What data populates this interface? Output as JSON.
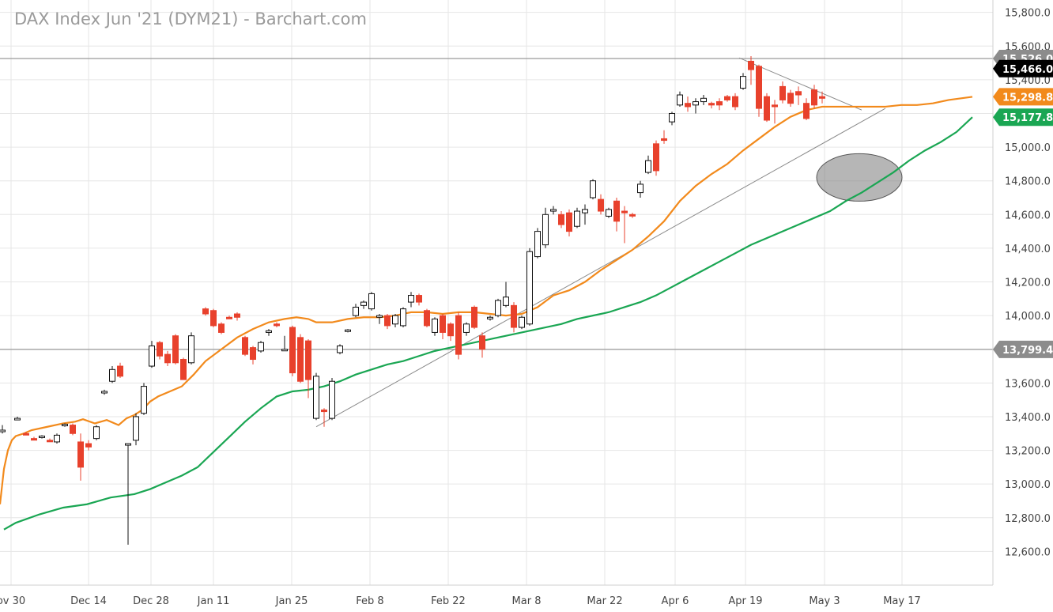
{
  "chart_data": {
    "type": "candlestick",
    "title": "DAX Index Jun '21 (DYM21) - Barchart.com",
    "ylim": [
      12400,
      15850
    ],
    "y_ticks": [
      "12,600.0",
      "12,800.0",
      "13,000.0",
      "13,200.0",
      "13,400.0",
      "13,600.0",
      "13,800.0",
      "14,000.0",
      "14,200.0",
      "14,400.0",
      "14,600.0",
      "14,800.0",
      "15,000.0",
      "15,200.0",
      "15,400.0",
      "15,600.0",
      "15,800.0"
    ],
    "x_ticks": [
      "ov 30",
      "Dec 14",
      "Dec 28",
      "Jan 11",
      "Jan 25",
      "Feb 8",
      "Feb 22",
      "Mar 8",
      "Mar 22",
      "Apr 6",
      "Apr 19",
      "May 3",
      "May 17"
    ],
    "price_tags": [
      {
        "label": "15,526.0",
        "value": 15526,
        "color": "#8c8c8c"
      },
      {
        "label": "15,466.0",
        "value": 15466,
        "color": "#000000"
      },
      {
        "label": "15,298.8",
        "value": 15298.8,
        "color": "#f28a1c"
      },
      {
        "label": "15,177.8",
        "value": 15177.8,
        "color": "#1aa653"
      },
      {
        "label": "13,799.4",
        "value": 13799.4,
        "color": "#8c8c8c"
      }
    ],
    "horizontal_lines": [
      15526,
      13799.4
    ],
    "series": [
      {
        "name": "",
        "color": "#f28a1c",
        "points": [
          [
            0,
            12880
          ],
          [
            5,
            13090
          ],
          [
            10,
            13200
          ],
          [
            15,
            13260
          ],
          [
            20,
            13285
          ],
          [
            30,
            13300
          ],
          [
            40,
            13320
          ],
          [
            60,
            13340
          ],
          [
            80,
            13360
          ],
          [
            95,
            13370
          ],
          [
            105,
            13385
          ],
          [
            120,
            13360
          ],
          [
            135,
            13380
          ],
          [
            150,
            13350
          ],
          [
            160,
            13390
          ],
          [
            170,
            13410
          ],
          [
            180,
            13440
          ],
          [
            190,
            13490
          ],
          [
            200,
            13520
          ],
          [
            215,
            13550
          ],
          [
            230,
            13580
          ],
          [
            245,
            13650
          ],
          [
            260,
            13730
          ],
          [
            280,
            13800
          ],
          [
            300,
            13870
          ],
          [
            320,
            13920
          ],
          [
            340,
            13960
          ],
          [
            360,
            13980
          ],
          [
            375,
            13990
          ],
          [
            390,
            13980
          ],
          [
            400,
            13960
          ],
          [
            420,
            13960
          ],
          [
            440,
            13980
          ],
          [
            460,
            13990
          ],
          [
            480,
            13990
          ],
          [
            500,
            14000
          ],
          [
            520,
            14020
          ],
          [
            540,
            14020
          ],
          [
            560,
            14010
          ],
          [
            580,
            14020
          ],
          [
            600,
            14020
          ],
          [
            620,
            14010
          ],
          [
            640,
            14000
          ],
          [
            660,
            14010
          ],
          [
            680,
            14050
          ],
          [
            700,
            14120
          ],
          [
            720,
            14150
          ],
          [
            740,
            14200
          ],
          [
            760,
            14270
          ],
          [
            780,
            14330
          ],
          [
            800,
            14390
          ],
          [
            820,
            14470
          ],
          [
            840,
            14560
          ],
          [
            860,
            14680
          ],
          [
            880,
            14770
          ],
          [
            900,
            14840
          ],
          [
            920,
            14900
          ],
          [
            940,
            14980
          ],
          [
            960,
            15050
          ],
          [
            980,
            15120
          ],
          [
            1000,
            15180
          ],
          [
            1020,
            15220
          ],
          [
            1040,
            15240
          ],
          [
            1060,
            15240
          ],
          [
            1080,
            15240
          ],
          [
            1100,
            15240
          ],
          [
            1120,
            15240
          ],
          [
            1140,
            15250
          ],
          [
            1160,
            15250
          ],
          [
            1180,
            15260
          ],
          [
            1200,
            15280
          ],
          [
            1230,
            15298.8
          ]
        ]
      },
      {
        "name": "",
        "color": "#1aa653",
        "points": [
          [
            5,
            12730
          ],
          [
            20,
            12770
          ],
          [
            50,
            12820
          ],
          [
            80,
            12860
          ],
          [
            110,
            12880
          ],
          [
            140,
            12920
          ],
          [
            170,
            12940
          ],
          [
            190,
            12970
          ],
          [
            210,
            13010
          ],
          [
            230,
            13050
          ],
          [
            250,
            13100
          ],
          [
            270,
            13190
          ],
          [
            290,
            13280
          ],
          [
            310,
            13370
          ],
          [
            330,
            13450
          ],
          [
            350,
            13520
          ],
          [
            370,
            13550
          ],
          [
            390,
            13560
          ],
          [
            410,
            13580
          ],
          [
            430,
            13610
          ],
          [
            450,
            13650
          ],
          [
            470,
            13680
          ],
          [
            490,
            13710
          ],
          [
            510,
            13730
          ],
          [
            530,
            13760
          ],
          [
            550,
            13790
          ],
          [
            570,
            13810
          ],
          [
            590,
            13830
          ],
          [
            610,
            13850
          ],
          [
            630,
            13870
          ],
          [
            650,
            13890
          ],
          [
            670,
            13910
          ],
          [
            690,
            13930
          ],
          [
            710,
            13950
          ],
          [
            730,
            13980
          ],
          [
            750,
            14000
          ],
          [
            770,
            14020
          ],
          [
            790,
            14050
          ],
          [
            810,
            14080
          ],
          [
            830,
            14120
          ],
          [
            850,
            14170
          ],
          [
            870,
            14220
          ],
          [
            890,
            14270
          ],
          [
            910,
            14320
          ],
          [
            930,
            14370
          ],
          [
            950,
            14420
          ],
          [
            970,
            14460
          ],
          [
            990,
            14500
          ],
          [
            1010,
            14540
          ],
          [
            1030,
            14580
          ],
          [
            1050,
            14620
          ],
          [
            1070,
            14680
          ],
          [
            1090,
            14730
          ],
          [
            1110,
            14790
          ],
          [
            1130,
            14850
          ],
          [
            1150,
            14920
          ],
          [
            1170,
            14980
          ],
          [
            1190,
            15030
          ],
          [
            1210,
            15090
          ],
          [
            1230,
            15177.8
          ]
        ]
      }
    ],
    "candles": [
      [
        3,
        13320,
        13350,
        13300,
        13320
      ],
      [
        22,
        13390,
        13400,
        13380,
        13390
      ],
      [
        33,
        13300,
        13310,
        13290,
        13295
      ],
      [
        43,
        13270,
        13280,
        13260,
        13265
      ],
      [
        53,
        13280,
        13290,
        13270,
        13285
      ],
      [
        63,
        13260,
        13270,
        13250,
        13255
      ],
      [
        72,
        13250,
        13300,
        13240,
        13290
      ],
      [
        82,
        13350,
        13360,
        13340,
        13355
      ],
      [
        92,
        13350,
        13360,
        13290,
        13300
      ],
      [
        102,
        13250,
        13300,
        13020,
        13100
      ],
      [
        112,
        13240,
        13260,
        13200,
        13220
      ],
      [
        122,
        13270,
        13350,
        13260,
        13340
      ],
      [
        132,
        13550,
        13560,
        13530,
        13550
      ],
      [
        142,
        13610,
        13700,
        13600,
        13680
      ],
      [
        152,
        13700,
        13720,
        13630,
        13640
      ],
      [
        162,
        13240,
        13240,
        12640,
        13240
      ],
      [
        172,
        13260,
        13420,
        13230,
        13400
      ],
      [
        182,
        13420,
        13600,
        13410,
        13580
      ],
      [
        192,
        13700,
        13850,
        13690,
        13820
      ],
      [
        202,
        13840,
        13850,
        13740,
        13760
      ],
      [
        212,
        13770,
        13790,
        13700,
        13720
      ],
      [
        222,
        13880,
        13890,
        13710,
        13720
      ],
      [
        232,
        13740,
        13750,
        13620,
        13620
      ],
      [
        242,
        13720,
        13900,
        13710,
        13880
      ],
      [
        260,
        14040,
        14050,
        14000,
        14010
      ],
      [
        270,
        14030,
        14040,
        13930,
        13940
      ],
      [
        280,
        13950,
        13960,
        13890,
        13900
      ],
      [
        290,
        13990,
        14000,
        13980,
        13985
      ],
      [
        300,
        14010,
        14020,
        13970,
        13990
      ],
      [
        310,
        13870,
        13880,
        13760,
        13770
      ],
      [
        320,
        13810,
        13820,
        13710,
        13740
      ],
      [
        330,
        13790,
        13850,
        13780,
        13840
      ],
      [
        340,
        13900,
        13920,
        13880,
        13910
      ],
      [
        350,
        13950,
        13960,
        13930,
        13940
      ],
      [
        360,
        13800,
        13880,
        13790,
        13800
      ],
      [
        370,
        13930,
        13940,
        13640,
        13660
      ],
      [
        380,
        13870,
        13890,
        13600,
        13610
      ],
      [
        390,
        13850,
        13860,
        13510,
        13620
      ],
      [
        400,
        13390,
        13660,
        13380,
        13640
      ],
      [
        410,
        13440,
        13450,
        13340,
        13430
      ],
      [
        420,
        13390,
        13630,
        13380,
        13610
      ],
      [
        430,
        13780,
        13830,
        13770,
        13820
      ],
      [
        440,
        13910,
        13920,
        13900,
        13915
      ],
      [
        450,
        14000,
        14070,
        13990,
        14050
      ],
      [
        460,
        14060,
        14090,
        14040,
        14080
      ],
      [
        470,
        14040,
        14140,
        14030,
        14130
      ],
      [
        480,
        13990,
        14010,
        13950,
        14000
      ],
      [
        490,
        14000,
        14010,
        13920,
        13940
      ],
      [
        500,
        13950,
        14010,
        13930,
        14000
      ],
      [
        510,
        13940,
        14050,
        13930,
        14040
      ],
      [
        520,
        14080,
        14140,
        14050,
        14120
      ],
      [
        530,
        14120,
        14130,
        14060,
        14080
      ],
      [
        540,
        14030,
        14040,
        13930,
        13940
      ],
      [
        550,
        13900,
        13990,
        13880,
        13980
      ],
      [
        560,
        14000,
        14010,
        13860,
        13900
      ],
      [
        570,
        13950,
        13960,
        13850,
        13880
      ],
      [
        580,
        14000,
        14020,
        13740,
        13770
      ],
      [
        590,
        13900,
        13960,
        13880,
        13950
      ],
      [
        600,
        14050,
        14060,
        13920,
        13930
      ],
      [
        610,
        13880,
        13900,
        13750,
        13800
      ],
      [
        620,
        13980,
        14000,
        13970,
        13990
      ],
      [
        630,
        14000,
        14100,
        13990,
        14090
      ],
      [
        640,
        14060,
        14200,
        14050,
        14110
      ],
      [
        650,
        14060,
        14080,
        13900,
        13930
      ],
      [
        660,
        13930,
        14000,
        13920,
        13990
      ],
      [
        670,
        13950,
        14400,
        13940,
        14380
      ],
      [
        680,
        14350,
        14520,
        14340,
        14500
      ],
      [
        690,
        14420,
        14640,
        14400,
        14600
      ],
      [
        700,
        14620,
        14650,
        14600,
        14630
      ],
      [
        710,
        14600,
        14620,
        14520,
        14540
      ],
      [
        720,
        14610,
        14630,
        14470,
        14500
      ],
      [
        730,
        14530,
        14640,
        14520,
        14620
      ],
      [
        740,
        14610,
        14660,
        14540,
        14630
      ],
      [
        750,
        14700,
        14810,
        14690,
        14800
      ],
      [
        760,
        14690,
        14720,
        14600,
        14620
      ],
      [
        770,
        14590,
        14640,
        14580,
        14630
      ],
      [
        780,
        14680,
        14700,
        14500,
        14560
      ],
      [
        790,
        14620,
        14650,
        14430,
        14610
      ],
      [
        800,
        14600,
        14610,
        14580,
        14595
      ],
      [
        810,
        14730,
        14800,
        14700,
        14780
      ],
      [
        820,
        14850,
        14950,
        14840,
        14920
      ],
      [
        830,
        15020,
        15040,
        14830,
        14860
      ],
      [
        840,
        15050,
        15100,
        15020,
        15040
      ],
      [
        850,
        15150,
        15210,
        15130,
        15200
      ],
      [
        860,
        15250,
        15330,
        15240,
        15310
      ],
      [
        870,
        15260,
        15300,
        15210,
        15240
      ],
      [
        880,
        15250,
        15290,
        15200,
        15270
      ],
      [
        890,
        15270,
        15310,
        15250,
        15290
      ],
      [
        900,
        15260,
        15270,
        15230,
        15250
      ],
      [
        910,
        15270,
        15290,
        15220,
        15250
      ],
      [
        920,
        15300,
        15310,
        15270,
        15280
      ],
      [
        930,
        15300,
        15320,
        15220,
        15240
      ],
      [
        940,
        15350,
        15440,
        15340,
        15420
      ],
      [
        950,
        15510,
        15540,
        15370,
        15460
      ],
      [
        960,
        15480,
        15490,
        15180,
        15230
      ],
      [
        970,
        15300,
        15320,
        15150,
        15160
      ],
      [
        980,
        15250,
        15280,
        15140,
        15240
      ],
      [
        990,
        15360,
        15390,
        15260,
        15280
      ],
      [
        1000,
        15320,
        15340,
        15240,
        15260
      ],
      [
        1010,
        15330,
        15360,
        15250,
        15310
      ],
      [
        1020,
        15260,
        15290,
        15160,
        15170
      ],
      [
        1030,
        15340,
        15370,
        15230,
        15250
      ],
      [
        1040,
        15300,
        15330,
        15260,
        15290
      ]
    ]
  }
}
